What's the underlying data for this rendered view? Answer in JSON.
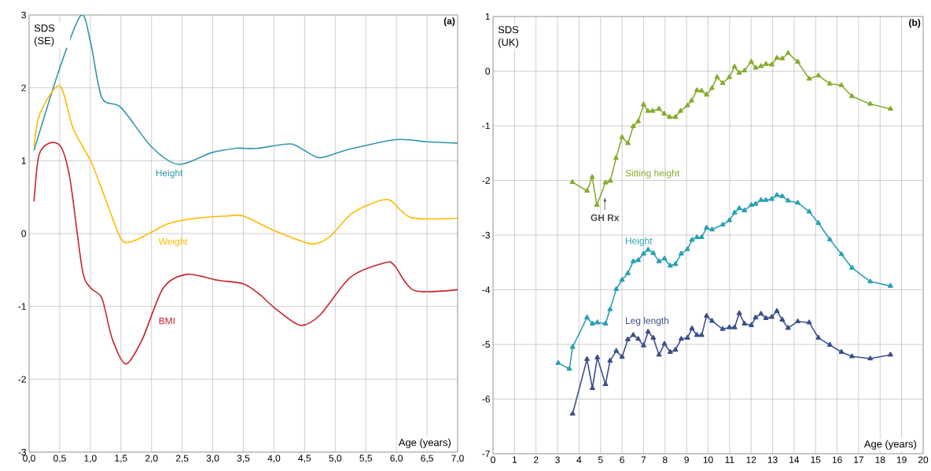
{
  "chart_data": [
    {
      "type": "line",
      "title": "(a)",
      "xlabel": "Age (years)",
      "ylabel": "SDS (SE)",
      "xlim": [
        0,
        7
      ],
      "ylim": [
        -3,
        3
      ],
      "xticks": [
        {
          "value": 0,
          "label": "0,0"
        },
        {
          "value": 0.5,
          "label": "0,5"
        },
        {
          "value": 1,
          "label": "1,0"
        },
        {
          "value": 1.5,
          "label": "1,5"
        },
        {
          "value": 2,
          "label": "2,0"
        },
        {
          "value": 2.5,
          "label": "2,5"
        },
        {
          "value": 3,
          "label": "3,0"
        },
        {
          "value": 3.5,
          "label": "3,5"
        },
        {
          "value": 4,
          "label": "4,0"
        },
        {
          "value": 4.5,
          "label": "4,5"
        },
        {
          "value": 5,
          "label": "5,0"
        },
        {
          "value": 5.5,
          "label": "5,5"
        },
        {
          "value": 6,
          "label": "6,0"
        },
        {
          "value": 6.5,
          "label": "6,5"
        },
        {
          "value": 7,
          "label": "7,0"
        }
      ],
      "yticks": [
        -3,
        -2,
        -1,
        0,
        1,
        2,
        3
      ],
      "grid": true,
      "marker": "none",
      "series": [
        {
          "name": "Height",
          "color": "#3196ae",
          "x": [
            0.08,
            0.5,
            0.85,
            1.01,
            1.19,
            1.5,
            2.0,
            2.44,
            2.98,
            3.37,
            3.5,
            3.74,
            4.26,
            4.48,
            4.75,
            5.2,
            5.99,
            6.49,
            7.0
          ],
          "values": [
            1.14,
            2.27,
            3.0,
            2.6,
            1.86,
            1.73,
            1.19,
            0.95,
            1.11,
            1.17,
            1.17,
            1.17,
            1.23,
            1.15,
            1.04,
            1.15,
            1.29,
            1.26,
            1.24
          ]
        },
        {
          "name": "Weight",
          "color": "#ffb900",
          "x": [
            0.08,
            0.18,
            0.5,
            0.72,
            1.01,
            1.24,
            1.5,
            1.68,
            2.0,
            2.29,
            2.73,
            3.22,
            3.5,
            4.01,
            4.6,
            4.9,
            5.25,
            5.59,
            5.89,
            6.24,
            7.0
          ],
          "values": [
            1.19,
            1.65,
            2.03,
            1.44,
            0.99,
            0.49,
            -0.07,
            -0.11,
            0.02,
            0.14,
            0.21,
            0.24,
            0.24,
            0.04,
            -0.14,
            -0.05,
            0.26,
            0.41,
            0.46,
            0.22,
            0.21
          ]
        },
        {
          "name": "BMI",
          "color": "#c8232c",
          "x": [
            0.08,
            0.16,
            0.33,
            0.52,
            0.67,
            0.87,
            1.01,
            1.19,
            1.36,
            1.58,
            1.85,
            2.19,
            2.58,
            3.07,
            3.5,
            3.76,
            4.01,
            4.43,
            4.75,
            5.25,
            5.82,
            5.97,
            6.29,
            7.0
          ],
          "values": [
            0.44,
            1.07,
            1.24,
            1.19,
            0.74,
            -0.5,
            -0.75,
            -0.89,
            -1.45,
            -1.79,
            -1.45,
            -0.75,
            -0.56,
            -0.64,
            -0.69,
            -0.83,
            -1.02,
            -1.26,
            -1.12,
            -0.6,
            -0.4,
            -0.44,
            -0.78,
            -0.77
          ]
        }
      ]
    },
    {
      "type": "line",
      "title": "(b)",
      "xlabel": "Age (years)",
      "ylabel": "SDS (UK)",
      "xlim": [
        0,
        20
      ],
      "ylim": [
        -7,
        1
      ],
      "xticks": [
        0,
        1,
        2,
        3,
        4,
        5,
        6,
        7,
        8,
        9,
        10,
        11,
        12,
        13,
        14,
        15,
        16,
        17,
        18,
        19,
        20
      ],
      "yticks": [
        -7,
        -6,
        -5,
        -4,
        -3,
        -2,
        -1,
        0,
        1
      ],
      "grid": true,
      "marker": "triangle",
      "annotations": [
        "GH Rx"
      ],
      "series": [
        {
          "name": "Sitting height",
          "color": "#86ad30",
          "x": [
            3.69,
            4.37,
            4.61,
            4.83,
            5.23,
            5.45,
            5.72,
            6.0,
            6.27,
            6.52,
            6.75,
            7.0,
            7.2,
            7.42,
            7.72,
            7.96,
            8.21,
            8.48,
            8.72,
            9.04,
            9.23,
            9.48,
            9.7,
            9.93,
            10.18,
            10.42,
            10.68,
            10.99,
            11.23,
            11.45,
            11.69,
            12.01,
            12.21,
            12.46,
            12.69,
            12.96,
            13.2,
            13.45,
            13.72,
            14.17,
            14.7,
            15.13,
            15.66,
            16.2,
            16.69,
            17.54,
            18.48
          ],
          "values": [
            -2.03,
            -2.19,
            -1.94,
            -2.45,
            -2.04,
            -2.01,
            -1.59,
            -1.21,
            -1.32,
            -1.01,
            -0.92,
            -0.61,
            -0.73,
            -0.73,
            -0.69,
            -0.78,
            -0.84,
            -0.84,
            -0.73,
            -0.63,
            -0.54,
            -0.35,
            -0.36,
            -0.43,
            -0.31,
            -0.11,
            -0.22,
            -0.11,
            0.08,
            -0.03,
            0.01,
            0.17,
            0.06,
            0.09,
            0.13,
            0.12,
            0.24,
            0.23,
            0.33,
            0.17,
            -0.14,
            -0.08,
            -0.23,
            -0.26,
            -0.46,
            -0.6,
            -0.69
          ]
        },
        {
          "name": "Height",
          "color": "#2aa0b3",
          "x": [
            3.03,
            3.55,
            3.7,
            4.37,
            4.62,
            4.85,
            5.23,
            5.44,
            5.73,
            6.0,
            6.27,
            6.52,
            6.75,
            7.0,
            7.21,
            7.45,
            7.72,
            7.97,
            8.24,
            8.48,
            8.75,
            9.04,
            9.25,
            9.48,
            9.7,
            9.93,
            10.18,
            10.68,
            10.99,
            11.23,
            11.45,
            11.69,
            12.01,
            12.21,
            12.46,
            12.69,
            12.96,
            13.2,
            13.45,
            13.72,
            14.17,
            14.7,
            15.13,
            15.66,
            16.2,
            16.69,
            17.54,
            18.48
          ],
          "values": [
            -5.34,
            -5.45,
            -5.05,
            -4.51,
            -4.62,
            -4.6,
            -4.62,
            -4.36,
            -3.99,
            -3.82,
            -3.7,
            -3.48,
            -3.46,
            -3.34,
            -3.27,
            -3.33,
            -3.48,
            -3.43,
            -3.56,
            -3.53,
            -3.34,
            -3.26,
            -3.09,
            -3.04,
            -3.04,
            -2.87,
            -2.9,
            -2.81,
            -2.73,
            -2.59,
            -2.51,
            -2.55,
            -2.45,
            -2.43,
            -2.36,
            -2.36,
            -2.34,
            -2.27,
            -2.29,
            -2.37,
            -2.41,
            -2.57,
            -2.78,
            -3.08,
            -3.35,
            -3.6,
            -3.85,
            -3.93
          ]
        },
        {
          "name": "Leg length",
          "color": "#3c4f8a",
          "x": [
            3.7,
            4.37,
            4.62,
            4.85,
            5.23,
            5.44,
            5.73,
            6.0,
            6.27,
            6.52,
            6.75,
            7.0,
            7.21,
            7.45,
            7.72,
            7.97,
            8.24,
            8.48,
            8.75,
            9.04,
            9.25,
            9.48,
            9.7,
            9.93,
            10.18,
            10.68,
            10.99,
            11.23,
            11.45,
            11.69,
            12.01,
            12.21,
            12.46,
            12.69,
            12.96,
            13.2,
            13.45,
            13.72,
            14.17,
            14.7,
            15.13,
            15.66,
            16.2,
            16.69,
            17.54,
            18.48
          ],
          "values": [
            -6.27,
            -5.27,
            -5.8,
            -5.24,
            -5.73,
            -5.3,
            -5.12,
            -5.23,
            -4.91,
            -4.83,
            -4.9,
            -5.02,
            -4.77,
            -4.88,
            -5.19,
            -4.99,
            -5.14,
            -5.1,
            -4.9,
            -4.88,
            -4.71,
            -4.83,
            -4.83,
            -4.48,
            -4.57,
            -4.72,
            -4.69,
            -4.69,
            -4.43,
            -4.62,
            -4.65,
            -4.51,
            -4.44,
            -4.52,
            -4.5,
            -4.39,
            -4.55,
            -4.7,
            -4.58,
            -4.6,
            -4.88,
            -5.01,
            -5.14,
            -5.22,
            -5.26,
            -5.19
          ]
        }
      ]
    }
  ]
}
